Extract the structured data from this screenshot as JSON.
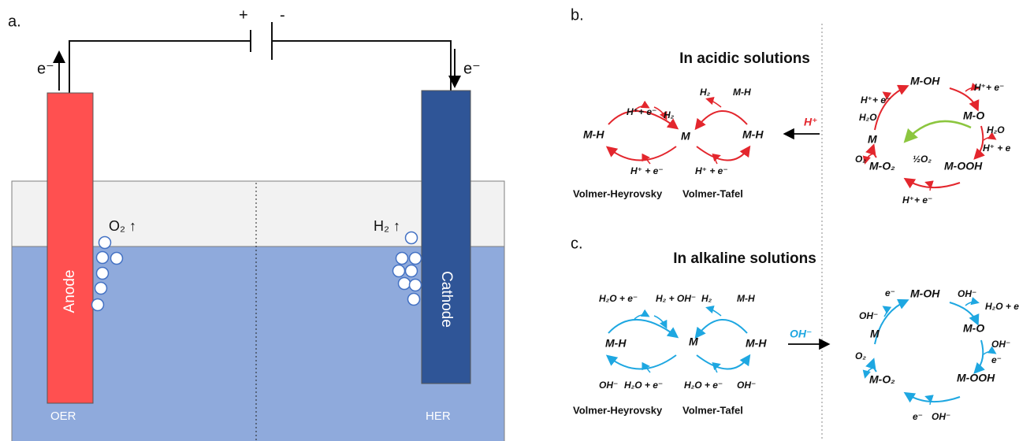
{
  "panel_a": {
    "label": "a.",
    "plus": "+",
    "minus": "-",
    "electron_left": "e⁻",
    "electron_right": "e⁻",
    "anode": "Anode",
    "cathode": "Cathode",
    "anode_gas": "O₂ ↑",
    "cathode_gas": "H₂ ↑",
    "anode_reaction": "OER",
    "cathode_reaction": "HER"
  },
  "panel_b": {
    "label": "b.",
    "title": "In acidic solutions",
    "her_labels": [
      "H⁺+ e⁻",
      "H₂",
      "H₂",
      "M-H",
      "M-H",
      "M",
      "M-H",
      "H⁺ + e⁻",
      "H⁺ + e⁻"
    ],
    "arrow_label": "H⁺",
    "oer_labels": [
      "H⁺+ e⁻",
      "M-OH",
      "H⁺+ e⁻",
      "H₂O",
      "M",
      "M-O",
      "H₂O",
      "H⁺ + e",
      "O₂",
      "½O₂",
      "M-O₂",
      "M-OOH",
      "H⁺+ e⁻"
    ],
    "mechanisms": [
      "Volmer-Heyrovsky",
      "Volmer-Tafel"
    ]
  },
  "panel_c": {
    "label": "c.",
    "title": "In alkaline solutions",
    "her_labels": [
      "H₂O + e⁻",
      "H₂ + OH⁻",
      "H₂",
      "M-H",
      "M-H",
      "M",
      "M-H",
      "OH⁻",
      "H₂O + e⁻",
      "H₂O + e⁻",
      "OH⁻"
    ],
    "arrow_label": "OH⁻",
    "oer_labels": [
      "e⁻",
      "M-OH",
      "OH⁻",
      "H₂O + e",
      "OH⁻",
      "M",
      "M-O",
      "OH⁻",
      "e⁻",
      "O₂",
      "M-O₂",
      "M-OOH",
      "e⁻",
      "OH⁻"
    ],
    "mechanisms": [
      "Volmer-Heyrovsky",
      "Volmer-Tafel"
    ]
  }
}
